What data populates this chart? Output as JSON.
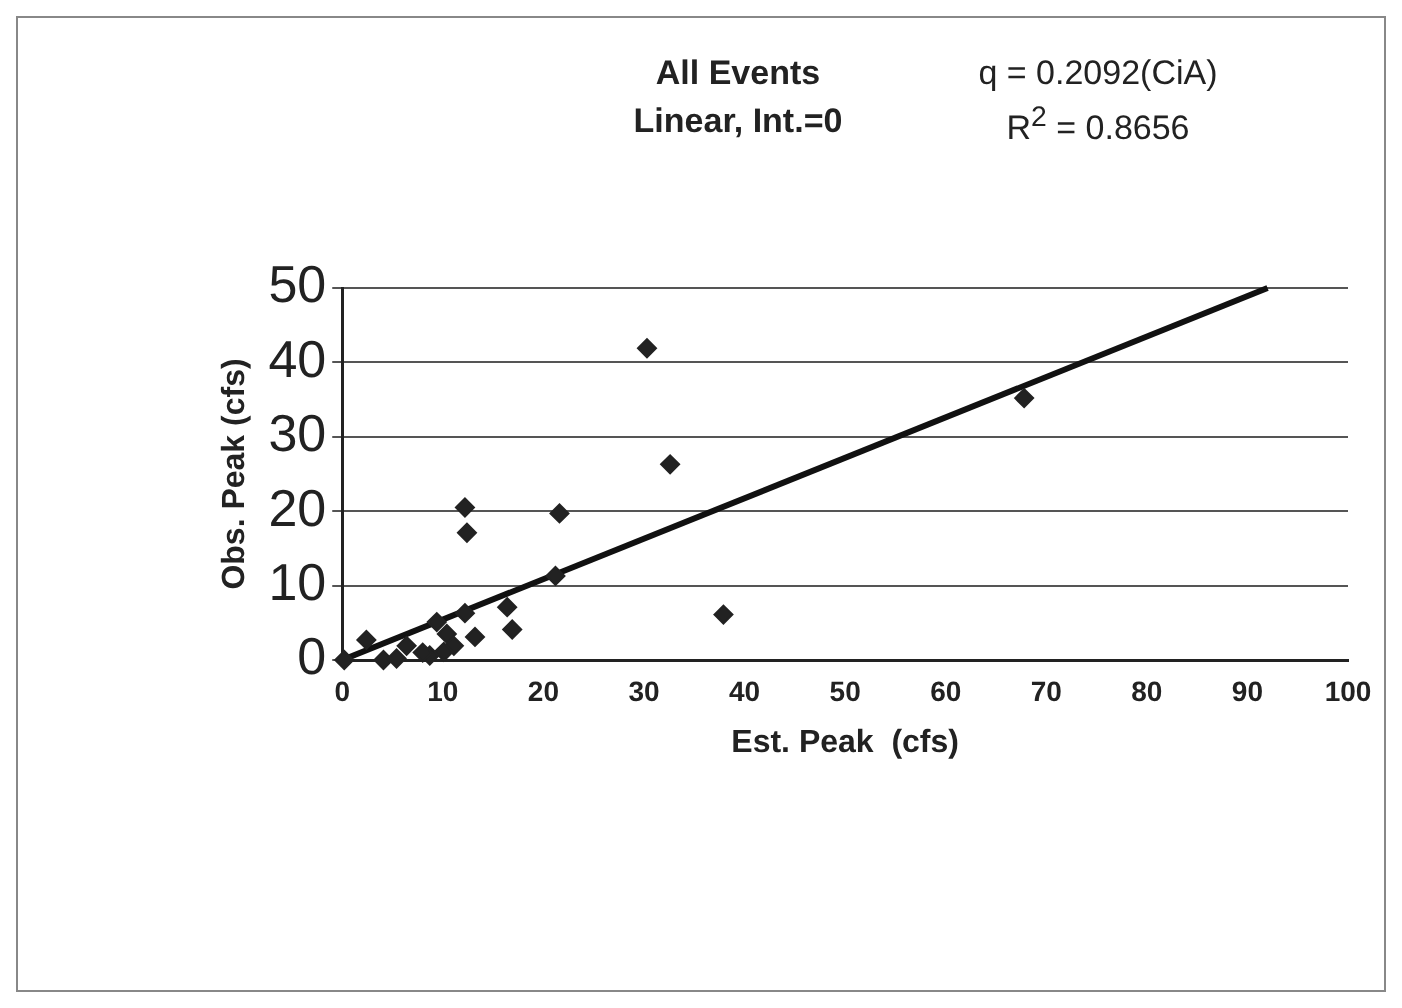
{
  "chart_data": {
    "type": "scatter",
    "xlabel": "Est. Peak  (cfs)",
    "ylabel": "Obs. Peak (cfs)",
    "annotations": [
      "All Events",
      "q = 0.2092(CiA)",
      "Linear, Int.=0",
      "R$^{2}$ = 0.8656"
    ],
    "xlim": [
      0,
      100
    ],
    "xticks": [
      0,
      10,
      20,
      30,
      40,
      50,
      60,
      70,
      80,
      90,
      100
    ],
    "ylim": [
      0,
      50
    ],
    "yticks": [
      0,
      10,
      20,
      30,
      40,
      50
    ],
    "grid": "y",
    "marker": "diamond",
    "legend": false,
    "series": [
      {
        "color": "#222222",
        "x": [
          0.2,
          2.4,
          4.1,
          5.4,
          6.4,
          9.4,
          8.7,
          8,
          10.4,
          11.1,
          10.1,
          12.2,
          13.2,
          12.2,
          12.4,
          21.6,
          21.2,
          16.4,
          16.9,
          30.3,
          32.6,
          37.9,
          67.8
        ],
        "values": [
          0,
          2.7,
          0,
          0.2,
          1.9,
          5.1,
          0.6,
          1,
          3.5,
          1.9,
          1.1,
          6.3,
          3.1,
          20.5,
          17.1,
          19.7,
          11.3,
          7.1,
          4.1,
          41.9,
          26.3,
          6.1,
          35.2
        ]
      },
      {
        "type": "line",
        "color": "#111111",
        "marker": "none",
        "x": [
          0,
          92
        ],
        "values": [
          0,
          50
        ]
      }
    ]
  }
}
